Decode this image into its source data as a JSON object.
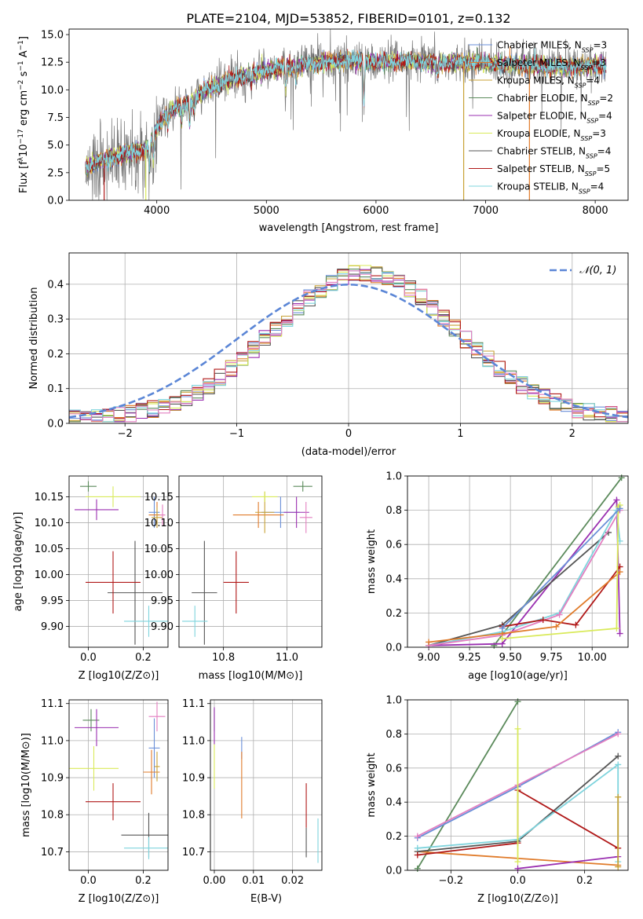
{
  "figure_title": "PLATE=2104, MJD=53852, FIBERID=0101, z=0.132",
  "colors": {
    "chab_miles": "#6a8fd8",
    "salp_miles": "#e07b2a",
    "krou_miles": "#c8a236",
    "chab_elodie": "#5b8a5b",
    "salp_elodie": "#9a2fb0",
    "krou_elodie": "#d9ea5a",
    "chab_stelib": "#555555",
    "salp_stelib": "#b01818",
    "krou_stelib": "#7fd4dd",
    "pink": "#e37fc0",
    "data_spectrum": "#777777",
    "gaussian": "#5b86d6"
  },
  "legend_spectrum": [
    {
      "model": "Chabrier MILES",
      "nssp": "=3",
      "color_key": "chab_miles"
    },
    {
      "model": "Salpeter MILES",
      "nssp": "=3",
      "color_key": "salp_miles"
    },
    {
      "model": "Kroupa MILES",
      "nssp": "=4",
      "color_key": "krou_miles"
    },
    {
      "model": "Chabrier ELODIE",
      "nssp": "=2",
      "color_key": "chab_elodie"
    },
    {
      "model": "Salpeter ELODIE",
      "nssp": "=4",
      "color_key": "salp_elodie"
    },
    {
      "model": "Kroupa ELODIE",
      "nssp": "=3",
      "color_key": "krou_elodie"
    },
    {
      "model": "Chabrier STELIB",
      "nssp": "=4",
      "color_key": "chab_stelib"
    },
    {
      "model": "Salpeter STELIB",
      "nssp": "=5",
      "color_key": "salp_stelib"
    },
    {
      "model": "Kroupa STELIB",
      "nssp": "=4",
      "color_key": "krou_stelib"
    }
  ],
  "legend_hist": "𝒩(0, 1)",
  "chart_data": [
    {
      "id": "spectrum",
      "type": "line",
      "xlabel": "wavelength [Angstrom, rest frame]",
      "ylabel_parts": [
        "Flux [f",
        "λ",
        "10",
        "−17",
        " erg cm",
        "−2",
        " s",
        "−1",
        " A",
        "−1",
        "]"
      ],
      "xlim": [
        3200,
        8300
      ],
      "ylim": [
        0,
        15.5
      ],
      "xticks": [
        4000,
        5000,
        6000,
        7000,
        8000
      ],
      "yticks": [
        0.0,
        2.5,
        5.0,
        7.5,
        10.0,
        12.5,
        15.0
      ],
      "continuum_x": [
        3350,
        3500,
        3700,
        3900,
        4000,
        4100,
        4300,
        4500,
        4700,
        4900,
        5100,
        5300,
        5500,
        5800,
        6000,
        6300,
        6600,
        6900,
        7200,
        7500,
        7800,
        8100
      ],
      "continuum_y": [
        3.0,
        3.6,
        4.2,
        4.6,
        6.5,
        8.0,
        9.0,
        10.2,
        11.0,
        11.5,
        12.0,
        12.2,
        12.5,
        12.6,
        12.5,
        12.6,
        12.4,
        12.5,
        12.3,
        12.2,
        12.1,
        12.2
      ],
      "absorption_lines": [
        [
          3934,
          2.5
        ],
        [
          3968,
          2.0
        ],
        [
          4102,
          1.2
        ],
        [
          4227,
          1.5
        ],
        [
          4300,
          2.0
        ],
        [
          4340,
          1.2
        ],
        [
          4861,
          1.0
        ],
        [
          5175,
          2.0
        ],
        [
          5270,
          1.2
        ],
        [
          5890,
          3.5
        ],
        [
          6563,
          1.0
        ]
      ]
    },
    {
      "id": "residuals",
      "type": "step-histogram",
      "xlabel": "(data-model)/error",
      "ylabel": "Normed distribution",
      "xlim": [
        -2.5,
        2.5
      ],
      "ylim": [
        0,
        0.49
      ],
      "xticks": [
        -2,
        -1,
        0,
        1,
        2
      ],
      "xtick_labels": [
        "−2",
        "−1",
        "0",
        "1",
        "2"
      ],
      "yticks": [
        0.0,
        0.1,
        0.2,
        0.3,
        0.4
      ],
      "bin_width": 0.1
    },
    {
      "id": "age_vs_Z",
      "type": "errorbar",
      "xlabel": "Z [log10(Z/Z⊙)]",
      "ylabel": "age  [log10(age/yr)]",
      "xlim": [
        -0.07,
        0.29
      ],
      "ylim": [
        9.86,
        10.19
      ],
      "xticks": [
        0.0,
        0.2
      ],
      "yticks": [
        9.9,
        9.95,
        10.0,
        10.05,
        10.1,
        10.15
      ],
      "points": [
        {
          "c": "chab_miles",
          "x": 0.24,
          "y": 10.12,
          "xe": 0.02,
          "ye": 0.03
        },
        {
          "c": "salp_miles",
          "x": 0.25,
          "y": 10.115,
          "xe": 0.03,
          "ye": 0.025
        },
        {
          "c": "krou_miles",
          "x": 0.25,
          "y": 10.11,
          "xe": 0.02,
          "ye": 0.02
        },
        {
          "c": "chab_elodie",
          "x": 0.0,
          "y": 10.17,
          "xe": 0.03,
          "ye": 0.01
        },
        {
          "c": "salp_elodie",
          "x": 0.03,
          "y": 10.125,
          "xe": 0.08,
          "ye": 0.02
        },
        {
          "c": "krou_elodie",
          "x": 0.09,
          "y": 10.15,
          "xe": 0.1,
          "ye": 0.02
        },
        {
          "c": "chab_stelib",
          "x": 0.17,
          "y": 9.965,
          "xe": 0.1,
          "ye": 0.1
        },
        {
          "c": "salp_stelib",
          "x": 0.09,
          "y": 9.985,
          "xe": 0.1,
          "ye": 0.06
        },
        {
          "c": "krou_stelib",
          "x": 0.22,
          "y": 9.91,
          "xe": 0.09,
          "ye": 0.03
        },
        {
          "c": "pink",
          "x": 0.27,
          "y": 10.115,
          "xe": 0.01,
          "ye": 0.02
        }
      ]
    },
    {
      "id": "age_vs_mass",
      "type": "errorbar",
      "xlabel": "mass [log10(M/M⊙)]",
      "ylabel": "",
      "xlim": [
        10.66,
        11.11
      ],
      "ylim": [
        9.86,
        10.19
      ],
      "xticks": [
        10.8,
        11.0
      ],
      "yticks": [
        9.9,
        9.95,
        10.0,
        10.05,
        10.1,
        10.15
      ],
      "points": [
        {
          "c": "chab_miles",
          "x": 10.98,
          "y": 10.12,
          "xe": 0.06,
          "ye": 0.03
        },
        {
          "c": "salp_miles",
          "x": 10.91,
          "y": 10.115,
          "xe": 0.08,
          "ye": 0.025
        },
        {
          "c": "krou_miles",
          "x": 10.93,
          "y": 10.12,
          "xe": 0.03,
          "ye": 0.04
        },
        {
          "c": "chab_elodie",
          "x": 11.05,
          "y": 10.17,
          "xe": 0.03,
          "ye": 0.01
        },
        {
          "c": "salp_elodie",
          "x": 11.03,
          "y": 10.12,
          "xe": 0.04,
          "ye": 0.03
        },
        {
          "c": "krou_elodie",
          "x": 10.93,
          "y": 10.15,
          "xe": 0.04,
          "ye": 0.01
        },
        {
          "c": "chab_stelib",
          "x": 10.74,
          "y": 9.965,
          "xe": 0.04,
          "ye": 0.1
        },
        {
          "c": "salp_stelib",
          "x": 10.84,
          "y": 9.985,
          "xe": 0.04,
          "ye": 0.06
        },
        {
          "c": "krou_stelib",
          "x": 10.71,
          "y": 9.91,
          "xe": 0.04,
          "ye": 0.03
        },
        {
          "c": "pink",
          "x": 11.06,
          "y": 10.11,
          "xe": 0.02,
          "ye": 0.03
        }
      ]
    },
    {
      "id": "weight_vs_age",
      "type": "line",
      "xlabel": "age  [log10(age/yr)]",
      "ylabel": "mass weight",
      "xlim": [
        8.87,
        10.22
      ],
      "ylim": [
        0,
        1.0
      ],
      "xticks": [
        9.0,
        9.25,
        9.5,
        9.75,
        10.0
      ],
      "yticks": [
        0.0,
        0.2,
        0.4,
        0.6,
        0.8,
        1.0
      ],
      "series": [
        {
          "c": "chab_elodie",
          "x": [
            9.4,
            10.18
          ],
          "y": [
            0.01,
            0.99
          ]
        },
        {
          "c": "salp_elodie",
          "x": [
            9.0,
            9.45,
            10.15,
            10.17
          ],
          "y": [
            0.01,
            0.02,
            0.86,
            0.08
          ]
        },
        {
          "c": "chab_stelib",
          "x": [
            9.0,
            9.45,
            10.1
          ],
          "y": [
            0.01,
            0.13,
            0.67
          ]
        },
        {
          "c": "krou_stelib",
          "x": [
            9.0,
            9.45,
            9.8,
            10.15,
            10.17
          ],
          "y": [
            0.01,
            0.09,
            0.2,
            0.8,
            0.62
          ]
        },
        {
          "c": "pink",
          "x": [
            9.0,
            9.45,
            9.8,
            10.17
          ],
          "y": [
            0.01,
            0.07,
            0.19,
            0.8
          ]
        },
        {
          "c": "salp_stelib",
          "x": [
            9.45,
            9.7,
            9.9,
            10.17
          ],
          "y": [
            0.12,
            0.16,
            0.13,
            0.47
          ]
        },
        {
          "c": "salp_miles",
          "x": [
            9.0,
            9.45,
            9.78,
            10.17
          ],
          "y": [
            0.03,
            0.08,
            0.12,
            0.44
          ]
        },
        {
          "c": "krou_elodie",
          "x": [
            9.45,
            10.15,
            10.16,
            10.17
          ],
          "y": [
            0.05,
            0.11,
            0.82,
            0.83
          ]
        },
        {
          "c": "chab_miles",
          "x": [
            9.45,
            10.17
          ],
          "y": [
            0.11,
            0.81
          ]
        }
      ]
    },
    {
      "id": "mass_vs_Z",
      "type": "errorbar",
      "xlabel": "Z [log10(Z/Z⊙)]",
      "ylabel": "mass [log10(M/M⊙)]",
      "xlim": [
        -0.07,
        0.29
      ],
      "ylim": [
        10.65,
        11.11
      ],
      "xticks": [
        0.0,
        0.2
      ],
      "yticks": [
        10.7,
        10.8,
        10.9,
        11.0,
        11.1
      ],
      "points": [
        {
          "c": "chab_miles",
          "x": 0.24,
          "y": 10.98,
          "xe": 0.02,
          "ye": 0.08
        },
        {
          "c": "salp_miles",
          "x": 0.23,
          "y": 10.915,
          "xe": 0.03,
          "ye": 0.06
        },
        {
          "c": "krou_miles",
          "x": 0.25,
          "y": 10.93,
          "xe": 0.01,
          "ye": 0.04
        },
        {
          "c": "chab_elodie",
          "x": 0.01,
          "y": 11.055,
          "xe": 0.03,
          "ye": 0.03
        },
        {
          "c": "salp_elodie",
          "x": 0.03,
          "y": 11.035,
          "xe": 0.08,
          "ye": 0.05
        },
        {
          "c": "krou_elodie",
          "x": 0.02,
          "y": 10.925,
          "xe": 0.09,
          "ye": 0.06
        },
        {
          "c": "chab_stelib",
          "x": 0.22,
          "y": 10.745,
          "xe": 0.1,
          "ye": 0.06
        },
        {
          "c": "salp_stelib",
          "x": 0.09,
          "y": 10.835,
          "xe": 0.1,
          "ye": 0.05
        },
        {
          "c": "krou_stelib",
          "x": 0.22,
          "y": 10.71,
          "xe": 0.09,
          "ye": 0.03
        },
        {
          "c": "pink",
          "x": 0.25,
          "y": 11.065,
          "xe": 0.03,
          "ye": 0.04
        }
      ]
    },
    {
      "id": "mass_vs_EBV",
      "type": "errorbar",
      "xlabel": "E(B-V)",
      "ylabel": "",
      "xlim": [
        -0.001,
        0.0275
      ],
      "ylim": [
        10.65,
        11.11
      ],
      "xticks": [
        0.0,
        0.01,
        0.02
      ],
      "yticks": [
        10.7,
        10.8,
        10.9,
        11.0,
        11.1
      ],
      "points": [
        {
          "c": "chab_miles",
          "x": 0.007,
          "y": 10.98,
          "xe": 0.0,
          "ye": 0.03
        },
        {
          "c": "salp_miles",
          "x": 0.007,
          "y": 10.88,
          "xe": 0.0,
          "ye": 0.09
        },
        {
          "c": "chab_elodie",
          "x": 0.0,
          "y": 11.055,
          "xe": 0.0,
          "ye": 0.03
        },
        {
          "c": "salp_elodie",
          "x": 0.0,
          "y": 11.04,
          "xe": 0.0,
          "ye": 0.05
        },
        {
          "c": "krou_elodie",
          "x": 0.0,
          "y": 10.93,
          "xe": 0.0,
          "ye": 0.06
        },
        {
          "c": "chab_stelib",
          "x": 0.0235,
          "y": 10.725,
          "xe": 0.0,
          "ye": 0.04
        },
        {
          "c": "salp_stelib",
          "x": 0.0235,
          "y": 10.825,
          "xe": 0.0,
          "ye": 0.06
        },
        {
          "c": "krou_stelib",
          "x": 0.0265,
          "y": 10.73,
          "xe": 0.0,
          "ye": 0.06
        }
      ]
    },
    {
      "id": "weight_vs_Z",
      "type": "line",
      "xlabel": "Z [log10(Z/Z⊙)]",
      "ylabel": "mass weight",
      "xlim": [
        -0.33,
        0.33
      ],
      "ylim": [
        0,
        1.0
      ],
      "xticks": [
        -0.2,
        0.0,
        0.2
      ],
      "xtick_labels": [
        "−0.2",
        "0.0",
        "0.2"
      ],
      "yticks": [
        0.0,
        0.2,
        0.4,
        0.6,
        0.8,
        1.0
      ],
      "series": [
        {
          "c": "chab_elodie",
          "x": [
            -0.3,
            0.0
          ],
          "y": [
            0.01,
            0.99
          ]
        },
        {
          "c": "chab_miles",
          "x": [
            -0.3,
            0.0,
            0.3
          ],
          "y": [
            0.19,
            0.49,
            0.81
          ]
        },
        {
          "c": "pink",
          "x": [
            -0.3,
            0.0,
            0.3
          ],
          "y": [
            0.2,
            0.5,
            0.8
          ]
        },
        {
          "c": "salp_miles",
          "x": [
            -0.3,
            0.3
          ],
          "y": [
            0.11,
            0.03
          ]
        },
        {
          "c": "chab_stelib",
          "x": [
            -0.3,
            0.0,
            0.3
          ],
          "y": [
            0.11,
            0.17,
            0.67
          ]
        },
        {
          "c": "krou_stelib",
          "x": [
            -0.3,
            0.0,
            0.3,
            0.3
          ],
          "y": [
            0.13,
            0.18,
            0.62,
            0.05
          ]
        },
        {
          "c": "salp_stelib",
          "x": [
            -0.3,
            0.0,
            0.0,
            0.3
          ],
          "y": [
            0.09,
            0.16,
            0.47,
            0.13
          ]
        },
        {
          "c": "salp_elodie",
          "x": [
            0.0,
            0.3
          ],
          "y": [
            0.01,
            0.08
          ]
        },
        {
          "c": "krou_elodie",
          "x": [
            0.0,
            0.0
          ],
          "y": [
            0.05,
            0.83
          ]
        },
        {
          "c": "krou_miles",
          "x": [
            0.3,
            0.3
          ],
          "y": [
            0.02,
            0.43
          ]
        }
      ]
    }
  ]
}
